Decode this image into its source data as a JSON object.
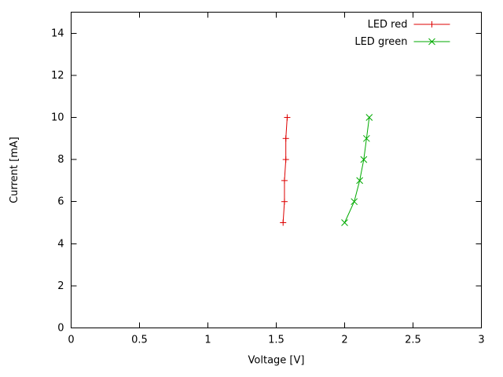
{
  "chart_data": {
    "type": "line",
    "title": "",
    "xlabel": "Voltage [V]",
    "ylabel": "Current [mA]",
    "xlim": [
      0,
      3
    ],
    "ylim": [
      0,
      15
    ],
    "xticks": [
      0,
      0.5,
      1,
      1.5,
      2,
      2.5,
      3
    ],
    "xtick_labels": [
      "0",
      "0.5",
      "1",
      "1.5",
      "2",
      "2.5",
      "3"
    ],
    "yticks": [
      0,
      2,
      4,
      6,
      8,
      10,
      12,
      14
    ],
    "ytick_labels": [
      "0",
      "2",
      "4",
      "6",
      "8",
      "10",
      "12",
      "14"
    ],
    "grid": false,
    "border": true,
    "legend_position": "top-right",
    "series": [
      {
        "name": "LED red",
        "color": "#dd0000",
        "marker": "plus",
        "points": [
          [
            1.55,
            5
          ],
          [
            1.56,
            6
          ],
          [
            1.56,
            7
          ],
          [
            1.57,
            8
          ],
          [
            1.57,
            9
          ],
          [
            1.58,
            10
          ]
        ]
      },
      {
        "name": "LED green",
        "color": "#00aa00",
        "marker": "cross",
        "points": [
          [
            2.0,
            5
          ],
          [
            2.07,
            6
          ],
          [
            2.11,
            7
          ],
          [
            2.14,
            8
          ],
          [
            2.16,
            9
          ],
          [
            2.18,
            10
          ]
        ]
      }
    ]
  },
  "colors": {
    "background": "#ffffff",
    "axis": "#000000",
    "red_series": "#dd0000",
    "green_series": "#00aa00"
  }
}
